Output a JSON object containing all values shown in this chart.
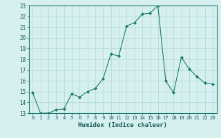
{
  "x": [
    0,
    1,
    2,
    3,
    4,
    5,
    6,
    7,
    8,
    9,
    10,
    11,
    12,
    13,
    14,
    15,
    16,
    17,
    18,
    19,
    20,
    21,
    22,
    23
  ],
  "y": [
    14.9,
    13.0,
    13.0,
    13.3,
    13.4,
    14.8,
    14.5,
    15.0,
    15.3,
    16.2,
    18.5,
    18.3,
    21.1,
    21.4,
    22.2,
    22.3,
    23.0,
    16.0,
    14.9,
    18.2,
    17.1,
    16.4,
    15.8,
    15.7
  ],
  "line_color": "#1a7a6e",
  "marker": "D",
  "marker_size": 2.0,
  "bg_color": "#d6f0f0",
  "grid_color": "#b8dada",
  "xlabel": "Humidex (Indice chaleur)",
  "xlim": [
    -0.5,
    23.5
  ],
  "ylim": [
    13,
    23
  ],
  "xticks": [
    0,
    1,
    2,
    3,
    4,
    5,
    6,
    7,
    8,
    9,
    10,
    11,
    12,
    13,
    14,
    15,
    16,
    17,
    18,
    19,
    20,
    21,
    22,
    23
  ],
  "yticks": [
    13,
    14,
    15,
    16,
    17,
    18,
    19,
    20,
    21,
    22,
    23
  ]
}
